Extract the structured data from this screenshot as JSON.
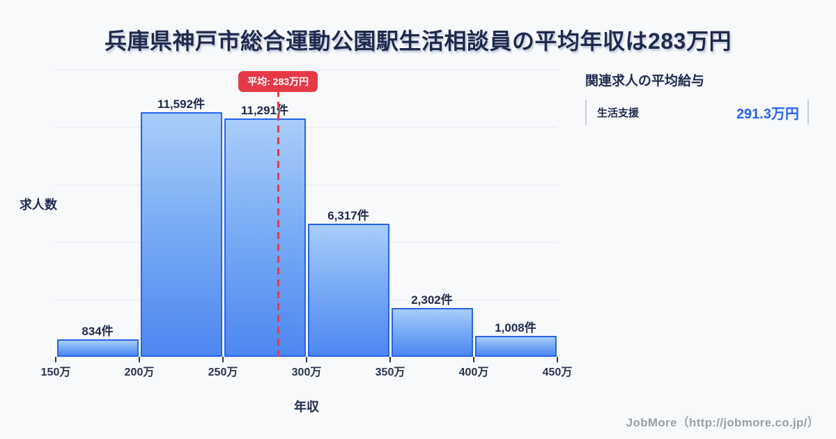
{
  "page": {
    "title": "兵庫県神戸市総合運動公園駅生活相談員の平均年収は283万円",
    "background": "#f8f9fb"
  },
  "chart_data": {
    "type": "bar",
    "title": "兵庫県神戸市総合運動公園駅生活相談員の平均年収は283万円",
    "xlabel": "年収",
    "ylabel": "求人数",
    "bin_edge_labels": [
      "150万",
      "200万",
      "250万",
      "300万",
      "350万",
      "400万",
      "450万"
    ],
    "bin_edges": [
      150,
      200,
      250,
      300,
      350,
      400,
      450
    ],
    "values": [
      834,
      11592,
      11291,
      6317,
      2302,
      1008
    ],
    "value_labels": [
      "834件",
      "11,592件",
      "11,291件",
      "6,317件",
      "2,302件",
      "1,008件"
    ],
    "average": {
      "value": 283,
      "label": "平均: 283万円"
    },
    "ylim": [
      0,
      13600
    ],
    "grid": "horizontal",
    "gridline_count": 6,
    "legend": "none",
    "colors": {
      "bar_fill_top": "#a9cdf9",
      "bar_fill_bottom": "#4e87f1",
      "bar_border": "#2563eb",
      "average_red": "#e63946",
      "grid": "#e6e9ef",
      "text_dark": "#1e2a4d",
      "value_blue": "#2563eb"
    }
  },
  "related_panel": {
    "header": "関連求人の平均給与",
    "rows": [
      {
        "label": "生活支援",
        "value": "291.3万円"
      }
    ]
  },
  "footer": {
    "credit": "JobMore（http://jobmore.co.jp/）"
  }
}
